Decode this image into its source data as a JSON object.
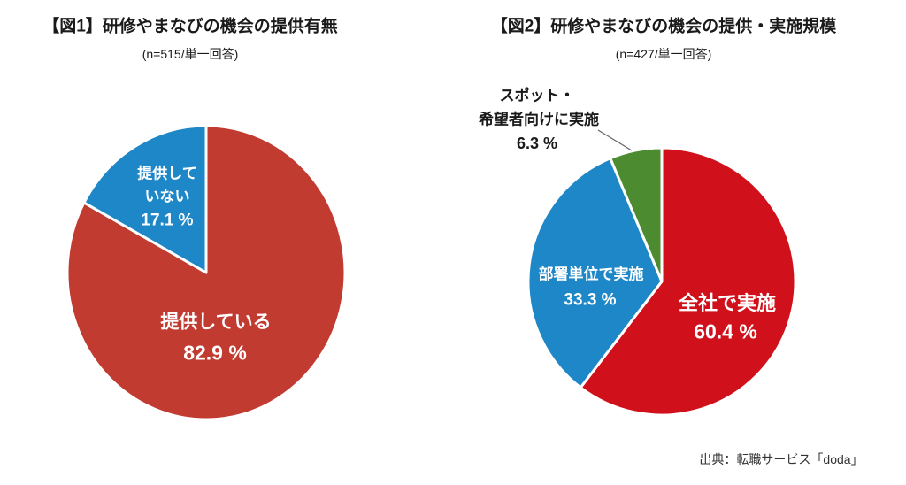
{
  "chart_data": [
    {
      "type": "pie",
      "title": "【図1】研修やまなびの機会の提供有無",
      "subtitle": "（n=515/単一回答）",
      "subtitle_display": "(n=515/単一回答)",
      "categories": [
        "提供している",
        "提供していない"
      ],
      "values": [
        82.9,
        17.1
      ],
      "value_labels": [
        "82.9 %",
        "17.1 %"
      ],
      "colors": [
        "#c23b31",
        "#1e87c8"
      ],
      "start_angle_deg": 0,
      "direction": "clockwise-from-top",
      "legend_position": "labels-inside-slices"
    },
    {
      "type": "pie",
      "title": "【図2】研修やまなびの機会の提供・実施規模",
      "subtitle_display": "(n=427/単一回答)",
      "categories": [
        "全社で実施",
        "部署単位で実施",
        "スポット・希望者向けに実施"
      ],
      "values": [
        60.4,
        33.3,
        6.3
      ],
      "value_labels": [
        "60.4 %",
        "33.3 %",
        "6.3 %"
      ],
      "colors": [
        "#d0111b",
        "#1e87c8",
        "#4d8b31"
      ],
      "start_angle_deg": 0,
      "direction": "clockwise-from-top",
      "legend_position": "labels-inside-slices-with-callout"
    }
  ],
  "figure1": {
    "red_label_lines": [
      "提供している",
      "82.9 %"
    ],
    "blue_label_lines": [
      "提供して",
      "いない",
      "17.1 %"
    ]
  },
  "figure2": {
    "red_label_lines": [
      "全社で実施",
      "60.4 %"
    ],
    "blue_label_lines": [
      "部署単位で実施",
      "33.3 %"
    ],
    "green_callout_lines": [
      "スポット・",
      "希望者向けに実施",
      "6.3 %"
    ]
  },
  "source": "出典：転職サービス「doda」",
  "palette": {
    "fig1_red": "#c23b31",
    "fig2_red": "#d0111b",
    "blue": "#1e87c8",
    "green": "#4d8b31",
    "inside_label_text": "#ffffff",
    "callout_text": "#1a1a1a"
  }
}
